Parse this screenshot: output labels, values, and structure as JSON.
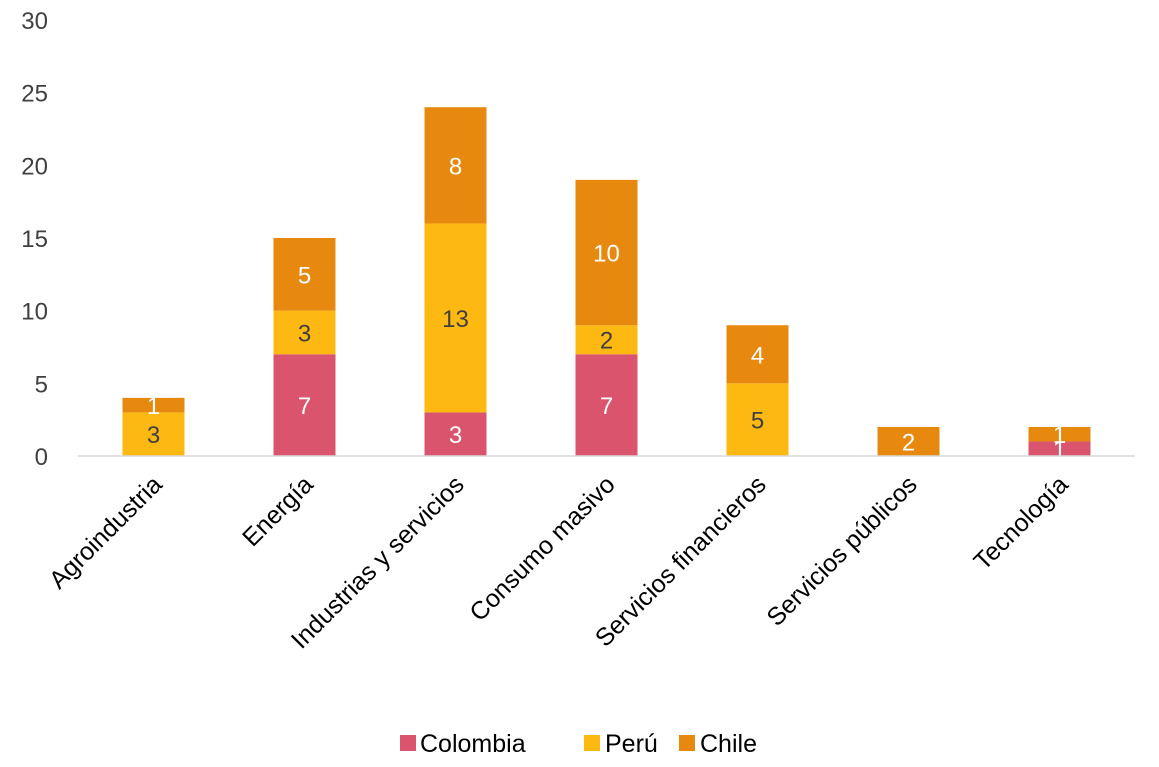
{
  "chart_data": {
    "type": "bar",
    "stacked": true,
    "categories": [
      "Agroindustria",
      "Energía",
      "Industrias y servicios",
      "Consumo masivo",
      "Servicios financieros",
      "Servicios públicos",
      "Tecnología"
    ],
    "series": [
      {
        "name": "Colombia",
        "values": [
          0,
          7,
          3,
          7,
          0,
          0,
          1
        ],
        "color": "#d9546c"
      },
      {
        "name": "Perú",
        "values": [
          3,
          3,
          13,
          2,
          5,
          0,
          0
        ],
        "color": "#fdb812"
      },
      {
        "name": "Chile",
        "values": [
          1,
          5,
          8,
          10,
          4,
          2,
          1
        ],
        "color": "#e8890f"
      }
    ],
    "ylim": [
      0,
      30
    ],
    "yticks": [
      0,
      5,
      10,
      15,
      20,
      25,
      30
    ],
    "grid": false,
    "legend": "bottom",
    "title": "",
    "xlabel": "",
    "ylabel": ""
  }
}
